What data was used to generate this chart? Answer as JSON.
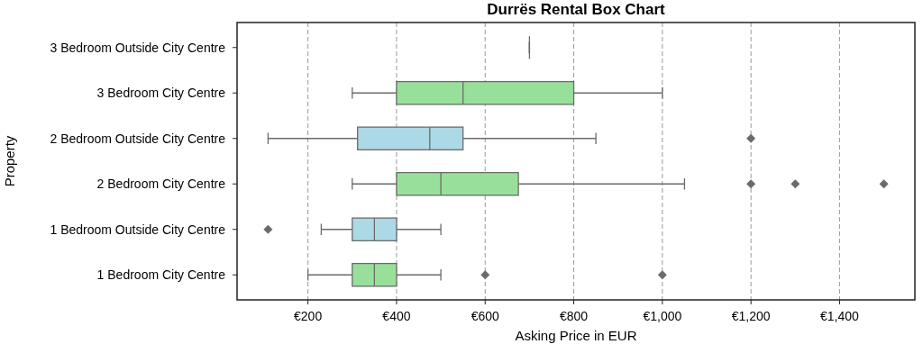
{
  "chart_data": {
    "type": "box",
    "orientation": "horizontal",
    "title": "Durrës Rental Box Chart",
    "xlabel": "Asking Price in EUR",
    "ylabel": "Property",
    "categories": [
      "3 Bedroom Outside City Centre",
      "3 Bedroom City Centre",
      "2 Bedroom Outside City Centre",
      "2 Bedroom City Centre",
      "1 Bedroom Outside City Centre",
      "1 Bedroom City Centre"
    ],
    "boxes": [
      {
        "low": 700,
        "q1": 700,
        "median": 700,
        "q3": 700,
        "high": 700
      },
      {
        "low": 300,
        "q1": 400,
        "median": 550,
        "q3": 800,
        "high": 1000
      },
      {
        "low": 110,
        "q1": 312,
        "median": 475,
        "q3": 550,
        "high": 850,
        "outliers": [
          1200
        ]
      },
      {
        "low": 300,
        "q1": 400,
        "median": 500,
        "q3": 675,
        "high": 1050,
        "outliers": [
          1200,
          1300,
          1500
        ]
      },
      {
        "low": 230,
        "q1": 300,
        "median": 350,
        "q3": 400,
        "high": 500,
        "outliers": [
          110
        ]
      },
      {
        "low": 200,
        "q1": 300,
        "median": 350,
        "q3": 400,
        "high": 500,
        "outliers": [
          600,
          1000
        ]
      }
    ],
    "colors": [
      null,
      "#98e09a",
      "#add8e6",
      "#98e09a",
      "#add8e6",
      "#98e09a"
    ],
    "xlim": [
      40,
      1570
    ],
    "xticks": [
      {
        "value": 200,
        "label": "€200"
      },
      {
        "value": 400,
        "label": "€400"
      },
      {
        "value": 600,
        "label": "€600"
      },
      {
        "value": 800,
        "label": "€800"
      },
      {
        "value": 1000,
        "label": "€1,000"
      },
      {
        "value": 1200,
        "label": "€1,200"
      },
      {
        "value": 1400,
        "label": "€1,400"
      }
    ],
    "grid": "x"
  }
}
